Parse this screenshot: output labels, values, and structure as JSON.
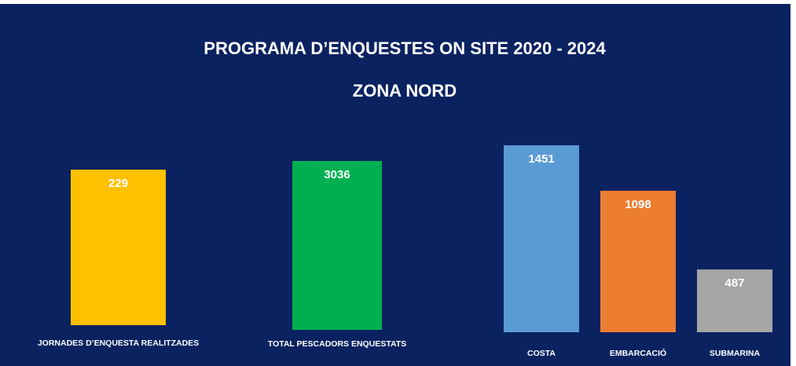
{
  "header": {
    "title": "PROGRAMA D’ENQUESTES ON SITE 2020 - 2024",
    "subtitle": "ZONA NORD"
  },
  "chart_data": [
    {
      "type": "bar",
      "categories": [
        "JORNADES D’ENQUESTA REALITZADES"
      ],
      "values": [
        229
      ],
      "colors": [
        "#ffc000"
      ]
    },
    {
      "type": "bar",
      "categories": [
        "TOTAL PESCADORS ENQUESTATS"
      ],
      "values": [
        3036
      ],
      "colors": [
        "#00b050"
      ]
    },
    {
      "type": "bar",
      "categories": [
        "COSTA",
        "EMBARCACIÓ",
        "SUBMARINA"
      ],
      "values": [
        1451,
        1098,
        487
      ],
      "colors": [
        "#5b9bd5",
        "#ed7d31",
        "#a5a5a5"
      ]
    }
  ]
}
